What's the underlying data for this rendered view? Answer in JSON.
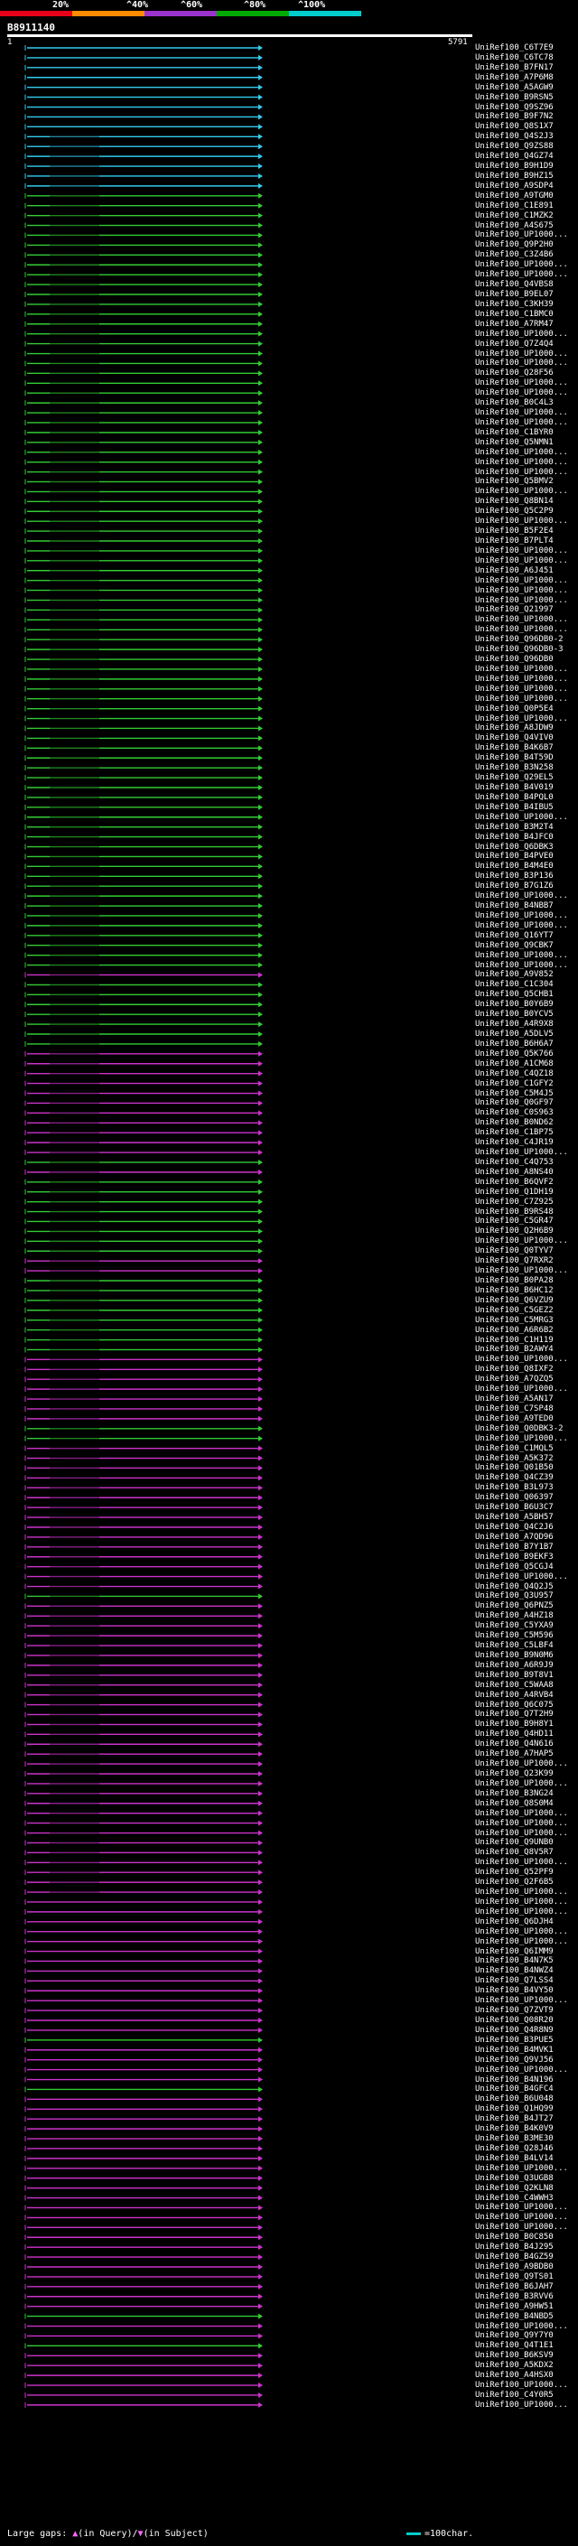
{
  "query_id": "B8911140",
  "ruler": {
    "start": "1",
    "end": "5791"
  },
  "scale": {
    "labels": [
      "20%",
      "^40%",
      "^60%",
      "^80%",
      "^100%"
    ],
    "colors": [
      "#e8001a",
      "#ff8c00",
      "#9933cc",
      "#00aa00",
      "#00cccc"
    ]
  },
  "hit_colors": {
    "cyan": "#33ccee",
    "green": "#33cc33",
    "magenta": "#cc33cc"
  },
  "legend": {
    "large_gaps": "Large gaps:",
    "in_query": "(in Query)/",
    "in_subject": "(in Subject)",
    "key": "=100char."
  },
  "hits": [
    {
      "label": "UniRef100_C6T7E9",
      "color": "cyan"
    },
    {
      "label": "UniRef100_C6TC78",
      "color": "cyan"
    },
    {
      "label": "UniRef100_B7FN17",
      "color": "cyan"
    },
    {
      "label": "UniRef100_A7P6M8",
      "color": "cyan"
    },
    {
      "label": "UniRef100_A5AGW9",
      "color": "cyan"
    },
    {
      "label": "UniRef100_B9RSN5",
      "color": "cyan"
    },
    {
      "label": "UniRef100_Q9SZ96",
      "color": "cyan"
    },
    {
      "label": "UniRef100_B9F7N2",
      "color": "cyan"
    },
    {
      "label": "UniRef100_Q8S1X7",
      "color": "cyan"
    },
    {
      "label": "UniRef100_Q4S2J3",
      "color": "cyan"
    },
    {
      "label": "UniRef100_Q9ZS88",
      "color": "cyan"
    },
    {
      "label": "UniRef100_Q4GZ74",
      "color": "cyan"
    },
    {
      "label": "UniRef100_B9H1D9",
      "color": "cyan"
    },
    {
      "label": "UniRef100_B9HZ15",
      "color": "cyan"
    },
    {
      "label": "UniRef100_A9SDP4",
      "color": "cyan"
    },
    {
      "label": "UniRef100_A9TGM0",
      "color": "green"
    },
    {
      "label": "UniRef100_C1E891",
      "color": "green"
    },
    {
      "label": "UniRef100_C1MZK2",
      "color": "green"
    },
    {
      "label": "UniRef100_A4S675",
      "color": "green"
    },
    {
      "label": "UniRef100_UP1000...",
      "color": "green"
    },
    {
      "label": "UniRef100_Q9P2H0",
      "color": "green"
    },
    {
      "label": "UniRef100_C3Z4B6",
      "color": "green"
    },
    {
      "label": "UniRef100_UP1000...",
      "color": "green"
    },
    {
      "label": "UniRef100_UP1000...",
      "color": "green"
    },
    {
      "label": "UniRef100_Q4VBS8",
      "color": "green"
    },
    {
      "label": "UniRef100_B9EL07",
      "color": "green"
    },
    {
      "label": "UniRef100_C3KH39",
      "color": "green"
    },
    {
      "label": "UniRef100_C1BMC0",
      "color": "green"
    },
    {
      "label": "UniRef100_A7RM47",
      "color": "green"
    },
    {
      "label": "UniRef100_UP1000...",
      "color": "green"
    },
    {
      "label": "UniRef100_Q7Z4Q4",
      "color": "green"
    },
    {
      "label": "UniRef100_UP1000...",
      "color": "green"
    },
    {
      "label": "UniRef100_UP1000...",
      "color": "green"
    },
    {
      "label": "UniRef100_Q28F56",
      "color": "green"
    },
    {
      "label": "UniRef100_UP1000...",
      "color": "green"
    },
    {
      "label": "UniRef100_UP1000...",
      "color": "green"
    },
    {
      "label": "UniRef100_B0C4L3",
      "color": "green"
    },
    {
      "label": "UniRef100_UP1000...",
      "color": "green"
    },
    {
      "label": "UniRef100_UP1000...",
      "color": "green"
    },
    {
      "label": "UniRef100_C1BYR0",
      "color": "green"
    },
    {
      "label": "UniRef100_Q5NMN1",
      "color": "green"
    },
    {
      "label": "UniRef100_UP1000...",
      "color": "green"
    },
    {
      "label": "UniRef100_UP1000...",
      "color": "green"
    },
    {
      "label": "UniRef100_UP1000...",
      "color": "green"
    },
    {
      "label": "UniRef100_Q5BMV2",
      "color": "green"
    },
    {
      "label": "UniRef100_UP1000...",
      "color": "green"
    },
    {
      "label": "UniRef100_Q8BN14",
      "color": "green"
    },
    {
      "label": "UniRef100_Q5C2P9",
      "color": "green"
    },
    {
      "label": "UniRef100_UP1000...",
      "color": "green"
    },
    {
      "label": "UniRef100_B5F2E4",
      "color": "green"
    },
    {
      "label": "UniRef100_B7PLT4",
      "color": "green"
    },
    {
      "label": "UniRef100_UP1000...",
      "color": "green"
    },
    {
      "label": "UniRef100_UP1000...",
      "color": "green"
    },
    {
      "label": "UniRef100_A6J451",
      "color": "green"
    },
    {
      "label": "UniRef100_UP1000...",
      "color": "green"
    },
    {
      "label": "UniRef100_UP1000...",
      "color": "green"
    },
    {
      "label": "UniRef100_UP1000...",
      "color": "green"
    },
    {
      "label": "UniRef100_Q21997",
      "color": "green"
    },
    {
      "label": "UniRef100_UP1000...",
      "color": "green"
    },
    {
      "label": "UniRef100_UP1000...",
      "color": "green"
    },
    {
      "label": "UniRef100_Q96DB0-2",
      "color": "green"
    },
    {
      "label": "UniRef100_Q96DB0-3",
      "color": "green"
    },
    {
      "label": "UniRef100_Q96DB0",
      "color": "green"
    },
    {
      "label": "UniRef100_UP1000...",
      "color": "green"
    },
    {
      "label": "UniRef100_UP1000...",
      "color": "green"
    },
    {
      "label": "UniRef100_UP1000...",
      "color": "green"
    },
    {
      "label": "UniRef100_UP1000...",
      "color": "green"
    },
    {
      "label": "UniRef100_Q0P5E4",
      "color": "green"
    },
    {
      "label": "UniRef100_UP1000...",
      "color": "green"
    },
    {
      "label": "UniRef100_A8JDW9",
      "color": "green"
    },
    {
      "label": "UniRef100_Q4VIV0",
      "color": "green"
    },
    {
      "label": "UniRef100_B4K6B7",
      "color": "green"
    },
    {
      "label": "UniRef100_B4T59D",
      "color": "green"
    },
    {
      "label": "UniRef100_B3N258",
      "color": "green"
    },
    {
      "label": "UniRef100_Q29EL5",
      "color": "green"
    },
    {
      "label": "UniRef100_B4V019",
      "color": "green"
    },
    {
      "label": "UniRef100_B4PQL0",
      "color": "green"
    },
    {
      "label": "UniRef100_B4IBU5",
      "color": "green"
    },
    {
      "label": "UniRef100_UP1000...",
      "color": "green"
    },
    {
      "label": "UniRef100_B3M2T4",
      "color": "green"
    },
    {
      "label": "UniRef100_B4JFC0",
      "color": "green"
    },
    {
      "label": "UniRef100_Q6DBK3",
      "color": "green"
    },
    {
      "label": "UniRef100_B4PVE0",
      "color": "green"
    },
    {
      "label": "UniRef100_B4M4E0",
      "color": "green"
    },
    {
      "label": "UniRef100_B3P136",
      "color": "green"
    },
    {
      "label": "UniRef100_B7G1Z6",
      "color": "green"
    },
    {
      "label": "UniRef100_UP1000...",
      "color": "green"
    },
    {
      "label": "UniRef100_B4NBB7",
      "color": "green"
    },
    {
      "label": "UniRef100_UP1000...",
      "color": "green"
    },
    {
      "label": "UniRef100_UP1000...",
      "color": "green"
    },
    {
      "label": "UniRef100_Q16YT7",
      "color": "green"
    },
    {
      "label": "UniRef100_Q9CBK7",
      "color": "green"
    },
    {
      "label": "UniRef100_UP1000...",
      "color": "green"
    },
    {
      "label": "UniRef100_UP1000...",
      "color": "green"
    },
    {
      "label": "UniRef100_A9V852",
      "color": "magenta"
    },
    {
      "label": "UniRef100_C1C304",
      "color": "green"
    },
    {
      "label": "UniRef100_Q5CHB1",
      "color": "green"
    },
    {
      "label": "UniRef100_B0Y6B9",
      "color": "green"
    },
    {
      "label": "UniRef100_B0YCV5",
      "color": "green"
    },
    {
      "label": "UniRef100_A4R9X8",
      "color": "green"
    },
    {
      "label": "UniRef100_A5DLV5",
      "color": "green"
    },
    {
      "label": "UniRef100_B6H6A7",
      "color": "green"
    },
    {
      "label": "UniRef100_Q5K766",
      "color": "magenta"
    },
    {
      "label": "UniRef100_A1CM68",
      "color": "magenta"
    },
    {
      "label": "UniRef100_C4QZ18",
      "color": "magenta"
    },
    {
      "label": "UniRef100_C1GFY2",
      "color": "magenta"
    },
    {
      "label": "UniRef100_C5M4J5",
      "color": "magenta"
    },
    {
      "label": "UniRef100_Q0GF97",
      "color": "magenta"
    },
    {
      "label": "UniRef100_C0S963",
      "color": "magenta"
    },
    {
      "label": "UniRef100_B0ND62",
      "color": "magenta"
    },
    {
      "label": "UniRef100_C1BP75",
      "color": "magenta"
    },
    {
      "label": "UniRef100_C4JR19",
      "color": "magenta"
    },
    {
      "label": "UniRef100_UP1000...",
      "color": "magenta"
    },
    {
      "label": "UniRef100_C4Q753",
      "color": "green"
    },
    {
      "label": "UniRef100_A8NS40",
      "color": "magenta"
    },
    {
      "label": "UniRef100_B6QVF2",
      "color": "green"
    },
    {
      "label": "UniRef100_Q1DH19",
      "color": "green"
    },
    {
      "label": "UniRef100_C7Z925",
      "color": "green"
    },
    {
      "label": "UniRef100_B9RS48",
      "color": "green"
    },
    {
      "label": "UniRef100_C5GR47",
      "color": "green"
    },
    {
      "label": "UniRef100_Q2H6B9",
      "color": "green"
    },
    {
      "label": "UniRef100_UP1000...",
      "color": "green"
    },
    {
      "label": "UniRef100_Q0TYV7",
      "color": "green"
    },
    {
      "label": "UniRef100_Q7RXR2",
      "color": "magenta"
    },
    {
      "label": "UniRef100_UP1000...",
      "color": "magenta"
    },
    {
      "label": "UniRef100_B0PA28",
      "color": "green"
    },
    {
      "label": "UniRef100_B6HC12",
      "color": "green"
    },
    {
      "label": "UniRef100_Q6VZU9",
      "color": "green"
    },
    {
      "label": "UniRef100_C5GEZ2",
      "color": "green"
    },
    {
      "label": "UniRef100_C5MRG3",
      "color": "green"
    },
    {
      "label": "UniRef100_A6R6B2",
      "color": "green"
    },
    {
      "label": "UniRef100_C1H119",
      "color": "green"
    },
    {
      "label": "UniRef100_B2AWY4",
      "color": "green"
    },
    {
      "label": "UniRef100_UP1000...",
      "color": "magenta"
    },
    {
      "label": "UniRef100_Q8IXF2",
      "color": "magenta"
    },
    {
      "label": "UniRef100_A7QZQ5",
      "color": "magenta"
    },
    {
      "label": "UniRef100_UP1000...",
      "color": "magenta"
    },
    {
      "label": "UniRef100_A5AN17",
      "color": "magenta"
    },
    {
      "label": "UniRef100_C7SP48",
      "color": "magenta"
    },
    {
      "label": "UniRef100_A9TED0",
      "color": "magenta"
    },
    {
      "label": "UniRef100_Q0DBK3-2",
      "color": "green"
    },
    {
      "label": "UniRef100_UP1000...",
      "color": "green"
    },
    {
      "label": "UniRef100_C1MQL5",
      "color": "magenta"
    },
    {
      "label": "UniRef100_A5K372",
      "color": "magenta"
    },
    {
      "label": "UniRef100_Q01B50",
      "color": "magenta"
    },
    {
      "label": "UniRef100_Q4CZ39",
      "color": "magenta"
    },
    {
      "label": "UniRef100_B3L973",
      "color": "magenta"
    },
    {
      "label": "UniRef100_Q06397",
      "color": "magenta"
    },
    {
      "label": "UniRef100_B6U3C7",
      "color": "magenta"
    },
    {
      "label": "UniRef100_A5BH57",
      "color": "magenta"
    },
    {
      "label": "UniRef100_Q4C2J6",
      "color": "magenta"
    },
    {
      "label": "UniRef100_A7QD96",
      "color": "magenta"
    },
    {
      "label": "UniRef100_B7Y1B7",
      "color": "magenta"
    },
    {
      "label": "UniRef100_B9EKF3",
      "color": "magenta"
    },
    {
      "label": "UniRef100_Q5CGJ4",
      "color": "magenta"
    },
    {
      "label": "UniRef100_UP1000...",
      "color": "magenta"
    },
    {
      "label": "UniRef100_Q4Q2J5",
      "color": "magenta"
    },
    {
      "label": "UniRef100_Q3U957",
      "color": "green"
    },
    {
      "label": "UniRef100_Q6PNZ5",
      "color": "magenta"
    },
    {
      "label": "UniRef100_A4HZ18",
      "color": "magenta"
    },
    {
      "label": "UniRef100_C5YXA9",
      "color": "magenta"
    },
    {
      "label": "UniRef100_C5M596",
      "color": "magenta"
    },
    {
      "label": "UniRef100_C5LBF4",
      "color": "magenta"
    },
    {
      "label": "UniRef100_B9N0M6",
      "color": "magenta"
    },
    {
      "label": "UniRef100_A6R9J9",
      "color": "magenta"
    },
    {
      "label": "UniRef100_B9T8V1",
      "color": "magenta"
    },
    {
      "label": "UniRef100_C5WAA8",
      "color": "magenta"
    },
    {
      "label": "UniRef100_A4RVB4",
      "color": "magenta"
    },
    {
      "label": "UniRef100_Q6C075",
      "color": "magenta"
    },
    {
      "label": "UniRef100_Q7T2H9",
      "color": "magenta"
    },
    {
      "label": "UniRef100_B9H8Y1",
      "color": "magenta"
    },
    {
      "label": "UniRef100_Q4HD11",
      "color": "magenta"
    },
    {
      "label": "UniRef100_Q4N616",
      "color": "magenta"
    },
    {
      "label": "UniRef100_A7HAP5",
      "color": "magenta"
    },
    {
      "label": "UniRef100_UP1000...",
      "color": "magenta"
    },
    {
      "label": "UniRef100_Q23K99",
      "color": "magenta"
    },
    {
      "label": "UniRef100_UP1000...",
      "color": "magenta"
    },
    {
      "label": "UniRef100_B3NG24",
      "color": "magenta"
    },
    {
      "label": "UniRef100_Q8S0M4",
      "color": "magenta"
    },
    {
      "label": "UniRef100_UP1000...",
      "color": "magenta"
    },
    {
      "label": "UniRef100_UP1000...",
      "color": "magenta"
    },
    {
      "label": "UniRef100_UP1000...",
      "color": "magenta"
    },
    {
      "label": "UniRef100_Q9UNB0",
      "color": "magenta"
    },
    {
      "label": "UniRef100_Q8V5R7",
      "color": "magenta"
    },
    {
      "label": "UniRef100_UP1000...",
      "color": "magenta"
    },
    {
      "label": "UniRef100_Q52PF9",
      "color": "magenta"
    },
    {
      "label": "UniRef100_Q2F6B5",
      "color": "magenta"
    },
    {
      "label": "UniRef100_UP1000...",
      "color": "magenta"
    },
    {
      "label": "UniRef100_UP1000...",
      "color": "magenta"
    },
    {
      "label": "UniRef100_UP1000...",
      "color": "magenta"
    },
    {
      "label": "UniRef100_Q6DJH4",
      "color": "magenta"
    },
    {
      "label": "UniRef100_UP1000...",
      "color": "magenta"
    },
    {
      "label": "UniRef100_UP1000...",
      "color": "magenta"
    },
    {
      "label": "UniRef100_Q6IMM9",
      "color": "magenta"
    },
    {
      "label": "UniRef100_B4N7K5",
      "color": "magenta"
    },
    {
      "label": "UniRef100_B4NWZ4",
      "color": "magenta"
    },
    {
      "label": "UniRef100_Q7LSS4",
      "color": "magenta"
    },
    {
      "label": "UniRef100_B4VY50",
      "color": "magenta"
    },
    {
      "label": "UniRef100_UP1000...",
      "color": "magenta"
    },
    {
      "label": "UniRef100_Q7ZVT9",
      "color": "magenta"
    },
    {
      "label": "UniRef100_Q08R20",
      "color": "magenta"
    },
    {
      "label": "UniRef100_Q4R8N9",
      "color": "magenta"
    },
    {
      "label": "UniRef100_B3PUE5",
      "color": "green"
    },
    {
      "label": "UniRef100_B4MVK1",
      "color": "magenta"
    },
    {
      "label": "UniRef100_Q9VJ56",
      "color": "magenta"
    },
    {
      "label": "UniRef100_UP1000...",
      "color": "magenta"
    },
    {
      "label": "UniRef100_B4N196",
      "color": "magenta"
    },
    {
      "label": "UniRef100_B4GFC4",
      "color": "green"
    },
    {
      "label": "UniRef100_B6U048",
      "color": "magenta"
    },
    {
      "label": "UniRef100_Q1HQ99",
      "color": "magenta"
    },
    {
      "label": "UniRef100_B4JT27",
      "color": "magenta"
    },
    {
      "label": "UniRef100_B4K0V9",
      "color": "magenta"
    },
    {
      "label": "UniRef100_B3ME30",
      "color": "magenta"
    },
    {
      "label": "UniRef100_Q28J46",
      "color": "magenta"
    },
    {
      "label": "UniRef100_B4LV14",
      "color": "magenta"
    },
    {
      "label": "UniRef100_UP1000...",
      "color": "magenta"
    },
    {
      "label": "UniRef100_Q3UGB8",
      "color": "magenta"
    },
    {
      "label": "UniRef100_Q2KLN8",
      "color": "magenta"
    },
    {
      "label": "UniRef100_C4WWH3",
      "color": "magenta"
    },
    {
      "label": "UniRef100_UP1000...",
      "color": "magenta"
    },
    {
      "label": "UniRef100_UP1000...",
      "color": "magenta"
    },
    {
      "label": "UniRef100_UP1000...",
      "color": "magenta"
    },
    {
      "label": "UniRef100_B0C850",
      "color": "magenta"
    },
    {
      "label": "UniRef100_B4J295",
      "color": "magenta"
    },
    {
      "label": "UniRef100_B4GZ59",
      "color": "magenta"
    },
    {
      "label": "UniRef100_A9BDB0",
      "color": "magenta"
    },
    {
      "label": "UniRef100_Q9TS01",
      "color": "magenta"
    },
    {
      "label": "UniRef100_B6JAH7",
      "color": "magenta"
    },
    {
      "label": "UniRef100_B3RVV6",
      "color": "magenta"
    },
    {
      "label": "UniRef100_A9HW51",
      "color": "magenta"
    },
    {
      "label": "UniRef100_B4NBD5",
      "color": "green"
    },
    {
      "label": "UniRef100_UP1000...",
      "color": "magenta"
    },
    {
      "label": "UniRef100_Q9Y7Y0",
      "color": "magenta"
    },
    {
      "label": "UniRef100_Q4T1E1",
      "color": "green"
    },
    {
      "label": "UniRef100_B6KSV9",
      "color": "magenta"
    },
    {
      "label": "UniRef100_A5KDX2",
      "color": "magenta"
    },
    {
      "label": "UniRef100_A4HSX0",
      "color": "magenta"
    },
    {
      "label": "UniRef100_UP1000...",
      "color": "magenta"
    },
    {
      "label": "UniRef100_C4Y0R5",
      "color": "magenta"
    },
    {
      "label": "UniRef100_UP1000...",
      "color": "magenta"
    }
  ]
}
